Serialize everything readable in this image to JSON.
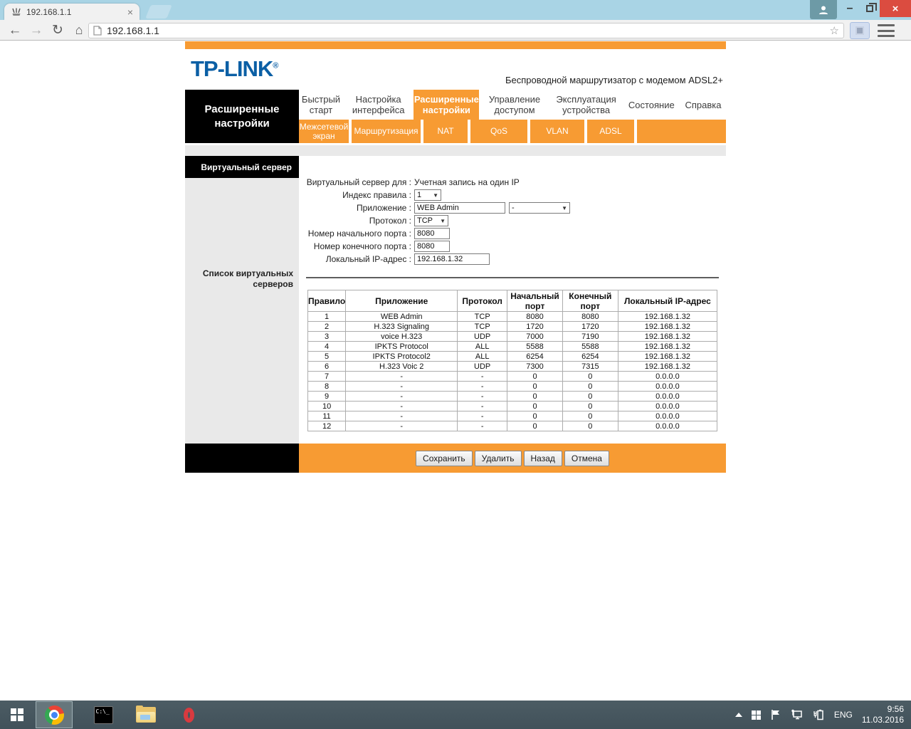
{
  "browser": {
    "tab_title": "192.168.1.1",
    "url": "192.168.1.1"
  },
  "router": {
    "brand": "TP-LINK",
    "brand_mark": "®",
    "product_subtitle": "Беспроводной маршрутизатор с модемом ADSL2+",
    "section_title": "Расширенные настройки",
    "main_tabs": [
      {
        "id": "quick-start",
        "label": "Быстрый старт",
        "active": false
      },
      {
        "id": "interface-setup",
        "label": "Настройка интерфейса",
        "active": false
      },
      {
        "id": "advanced-setup",
        "label": "Расширенные настройки",
        "active": true
      },
      {
        "id": "access-management",
        "label": "Управление доступом",
        "active": false
      },
      {
        "id": "maintenance",
        "label": "Эксплуатация устройства",
        "active": false
      },
      {
        "id": "status",
        "label": "Состояние",
        "active": false
      },
      {
        "id": "help",
        "label": "Справка",
        "active": false
      }
    ],
    "sub_tabs": [
      {
        "id": "firewall",
        "label": "Межсетевой экран"
      },
      {
        "id": "routing",
        "label": "Маршрутизация"
      },
      {
        "id": "nat",
        "label": "NAT"
      },
      {
        "id": "qos",
        "label": "QoS"
      },
      {
        "id": "vlan",
        "label": "VLAN"
      },
      {
        "id": "adsl",
        "label": "ADSL"
      }
    ],
    "sidebar": {
      "current_section": "Виртуальный сервер",
      "list_caption": "Список виртуальных серверов"
    },
    "form": {
      "server_for_label": "Виртуальный сервер для :",
      "server_for_value": "Учетная запись на один IP",
      "rule_index_label": "Индекс правила :",
      "rule_index_value": "1",
      "application_label": "Приложение :",
      "application_value": "WEB Admin",
      "application_preset_value": "-",
      "protocol_label": "Протокол :",
      "protocol_value": "TCP",
      "start_port_label": "Номер начального порта :",
      "start_port_value": "8080",
      "end_port_label": "Номер конечного порта :",
      "end_port_value": "8080",
      "local_ip_label": "Локальный IP-адрес :",
      "local_ip_value": "192.168.1.32"
    },
    "table": {
      "headers": [
        "Правило",
        "Приложение",
        "Протокол",
        "Начальный порт",
        "Конечный порт",
        "Локальный IP-адрес"
      ],
      "rows": [
        [
          "1",
          "WEB Admin",
          "TCP",
          "8080",
          "8080",
          "192.168.1.32"
        ],
        [
          "2",
          "H.323 Signaling",
          "TCP",
          "1720",
          "1720",
          "192.168.1.32"
        ],
        [
          "3",
          "voice H.323",
          "UDP",
          "7000",
          "7190",
          "192.168.1.32"
        ],
        [
          "4",
          "IPKTS Protocol",
          "ALL",
          "5588",
          "5588",
          "192.168.1.32"
        ],
        [
          "5",
          "IPKTS Protocol2",
          "ALL",
          "6254",
          "6254",
          "192.168.1.32"
        ],
        [
          "6",
          "H.323 Voic 2",
          "UDP",
          "7300",
          "7315",
          "192.168.1.32"
        ],
        [
          "7",
          "-",
          "-",
          "0",
          "0",
          "0.0.0.0"
        ],
        [
          "8",
          "-",
          "-",
          "0",
          "0",
          "0.0.0.0"
        ],
        [
          "9",
          "-",
          "-",
          "0",
          "0",
          "0.0.0.0"
        ],
        [
          "10",
          "-",
          "-",
          "0",
          "0",
          "0.0.0.0"
        ],
        [
          "11",
          "-",
          "-",
          "0",
          "0",
          "0.0.0.0"
        ],
        [
          "12",
          "-",
          "-",
          "0",
          "0",
          "0.0.0.0"
        ]
      ]
    },
    "actions": [
      {
        "id": "save",
        "label": "Сохранить"
      },
      {
        "id": "delete",
        "label": "Удалить"
      },
      {
        "id": "back",
        "label": "Назад"
      },
      {
        "id": "cancel",
        "label": "Отмена"
      }
    ],
    "colors": {
      "accent_orange": "#F79B33",
      "brand_blue": "#0B5FA5"
    }
  },
  "taskbar": {
    "language": "ENG",
    "time": "9:56",
    "date": "11.03.2016"
  }
}
